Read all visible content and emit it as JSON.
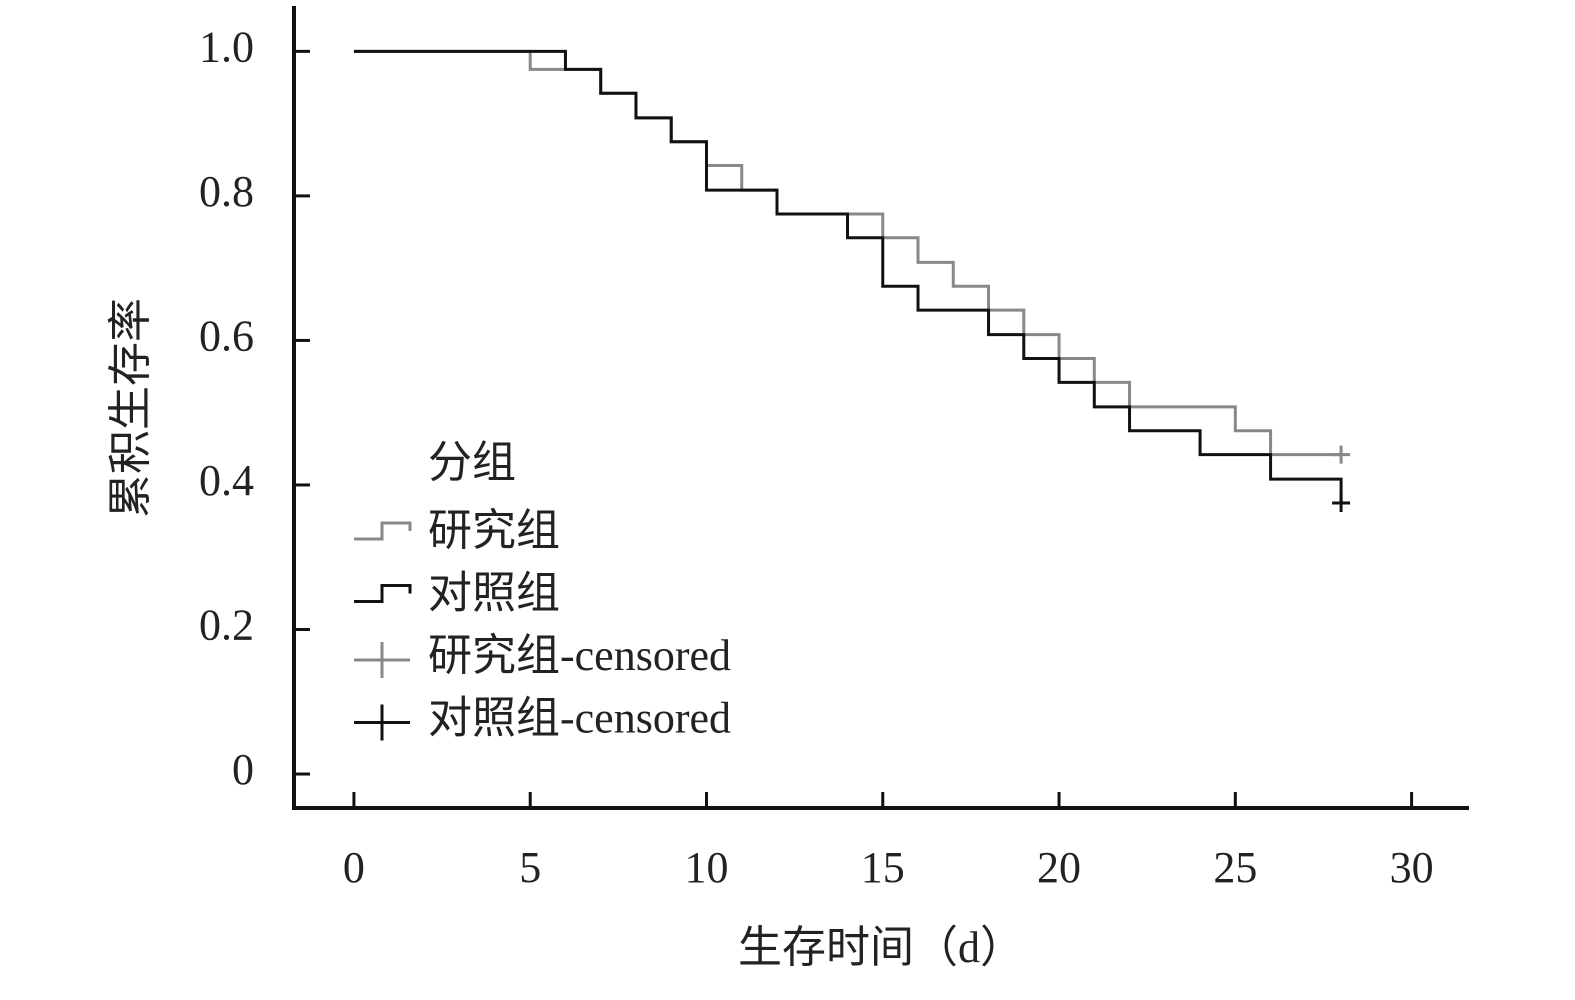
{
  "chart_data": {
    "type": "survival",
    "x_label": "生存时间（d）",
    "y_label": "累积生存率",
    "legend_title": "分组",
    "legend": "left",
    "xlim": [
      -1.7,
      31.6
    ],
    "ylim": [
      -0.047,
      1.06
    ],
    "xticks": [
      0,
      5,
      10,
      15,
      20,
      25,
      30
    ],
    "yticks": [
      0,
      0.2,
      0.4,
      0.6,
      0.8,
      {
        "value": 1,
        "label": "1.0"
      }
    ],
    "series": [
      {
        "name": "研究组",
        "color": "#888888",
        "marker": "step",
        "x": [
          0,
          5,
          7,
          8,
          9,
          10,
          11,
          12,
          15,
          16,
          17,
          18,
          19,
          20,
          21,
          22,
          25,
          26,
          28
        ],
        "values": [
          1.0,
          0.975,
          0.942,
          0.908,
          0.875,
          0.842,
          0.808,
          0.775,
          0.742,
          0.708,
          0.675,
          0.642,
          0.608,
          0.575,
          0.542,
          0.508,
          0.475,
          0.442,
          0.442
        ]
      },
      {
        "name": "对照组",
        "color": "#111111",
        "marker": "step",
        "x": [
          0,
          6,
          7,
          8,
          9,
          10,
          12,
          14,
          15,
          16,
          18,
          19,
          20,
          21,
          22,
          24,
          26,
          28
        ],
        "values": [
          1.0,
          0.975,
          0.942,
          0.908,
          0.875,
          0.808,
          0.775,
          0.742,
          0.675,
          0.642,
          0.608,
          0.575,
          0.542,
          0.508,
          0.475,
          0.442,
          0.408,
          0.375
        ]
      },
      {
        "name": "研究组-censored",
        "color": "#888888",
        "marker": "censor",
        "x": [
          28
        ],
        "values": [
          0.442
        ]
      },
      {
        "name": "对照组-censored",
        "color": "#111111",
        "marker": "censor",
        "x": [
          28
        ],
        "values": [
          0.375
        ]
      }
    ]
  }
}
